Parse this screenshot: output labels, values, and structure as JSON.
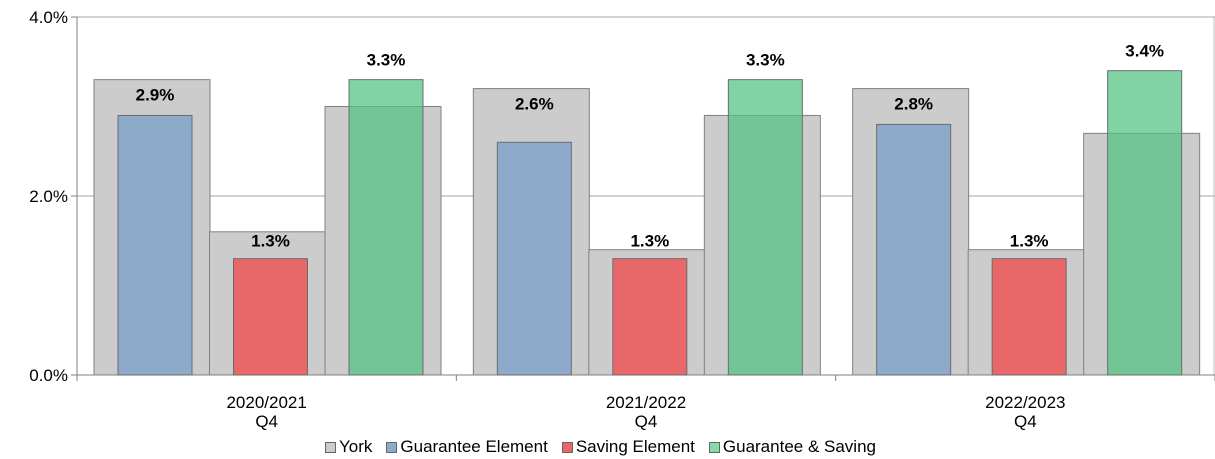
{
  "chart_data": {
    "type": "bar",
    "categories": [
      [
        "2020/2021",
        "Q4"
      ],
      [
        "2021/2022",
        "Q4"
      ],
      [
        "2022/2023",
        "Q4"
      ]
    ],
    "ylim": [
      0,
      4.0
    ],
    "yticks": [
      "0.0%",
      "2.0%",
      "4.0%"
    ],
    "ytick_values": [
      0,
      2.0,
      4.0
    ],
    "grid": true,
    "legend_position": "bottom",
    "background_series": {
      "name": "York",
      "color": "#cccccc",
      "values": [
        [
          3.3,
          1.6,
          3.0
        ],
        [
          3.2,
          1.4,
          2.9
        ],
        [
          3.2,
          1.4,
          2.7
        ]
      ]
    },
    "series": [
      {
        "name": "Guarantee Element",
        "color": "#8eaacb",
        "values": [
          2.9,
          2.6,
          2.8
        ],
        "labels": [
          "2.9%",
          "2.6%",
          "2.8%"
        ]
      },
      {
        "name": "Saving Element",
        "color": "#e8686a",
        "values": [
          1.3,
          1.3,
          1.3
        ],
        "labels": [
          "1.3%",
          "1.3%",
          "1.3%"
        ]
      },
      {
        "name": "Guarantee & Saving",
        "color": "#52c27f",
        "values": [
          3.3,
          3.3,
          3.4
        ],
        "labels": [
          "3.3%",
          "3.3%",
          "3.4%"
        ]
      }
    ]
  }
}
